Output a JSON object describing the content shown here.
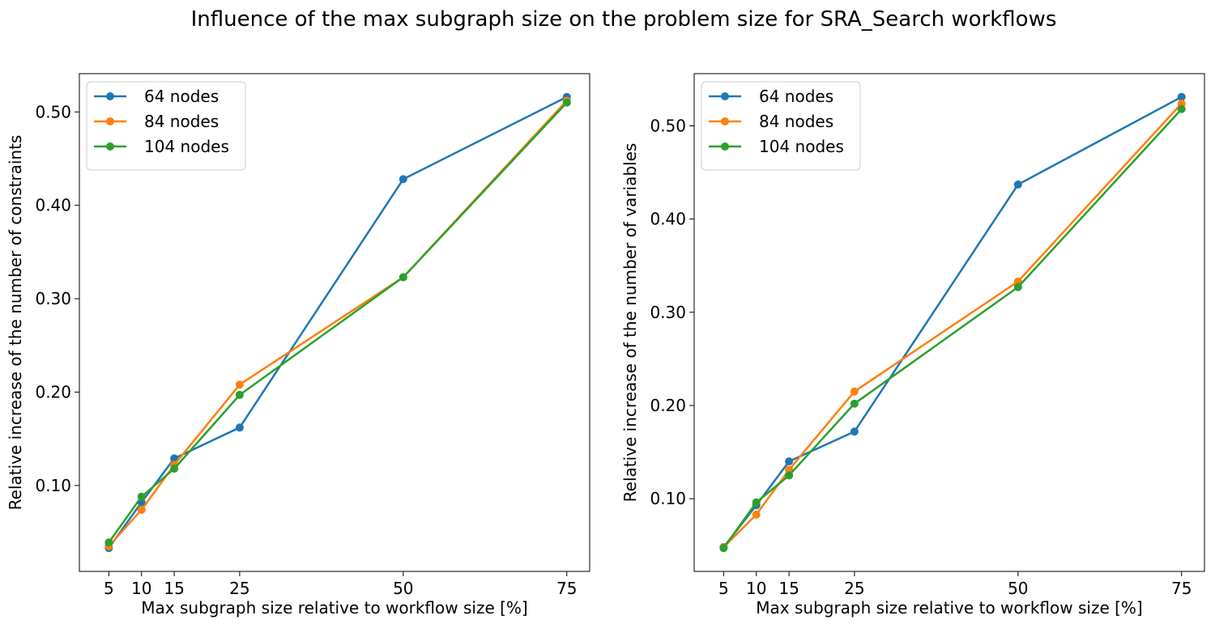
{
  "figure": {
    "title": "Influence of the max subgraph size on the problem size for SRA_Search workflows"
  },
  "chart_data": [
    {
      "type": "line",
      "xlabel": "Max subgraph size relative to workflow size [%]",
      "ylabel": "Relative increase of the number of constraints",
      "x": [
        5,
        10,
        15,
        25,
        50,
        75
      ],
      "xticks": [
        5,
        10,
        15,
        25,
        50,
        75
      ],
      "xtick_labels": [
        "5",
        "10",
        "15",
        "25",
        "50",
        "75"
      ],
      "yticks": [
        0.1,
        0.2,
        0.3,
        0.4,
        0.5
      ],
      "ytick_labels": [
        "0.10",
        "0.20",
        "0.30",
        "0.40",
        "0.50"
      ],
      "xlim": [
        0.5,
        78.5
      ],
      "ylim": [
        0.008,
        0.541
      ],
      "legend_position": "upper-left",
      "grid": false,
      "series": [
        {
          "name": "64 nodes",
          "color": "#1f77b4",
          "values": [
            0.033,
            0.082,
            0.129,
            0.162,
            0.428,
            0.516
          ]
        },
        {
          "name": "84 nodes",
          "color": "#ff7f0e",
          "values": [
            0.035,
            0.074,
            0.122,
            0.208,
            0.323,
            0.512
          ]
        },
        {
          "name": "104 nodes",
          "color": "#2ca02c",
          "values": [
            0.039,
            0.088,
            0.118,
            0.197,
            0.323,
            0.51
          ]
        }
      ]
    },
    {
      "type": "line",
      "xlabel": "Max subgraph size relative to workflow size [%]",
      "ylabel": "Relative increase of the number of variables",
      "x": [
        5,
        10,
        15,
        25,
        50,
        75
      ],
      "xticks": [
        5,
        10,
        15,
        25,
        50,
        75
      ],
      "xtick_labels": [
        "5",
        "10",
        "15",
        "25",
        "50",
        "75"
      ],
      "yticks": [
        0.1,
        0.2,
        0.3,
        0.4,
        0.5
      ],
      "ytick_labels": [
        "0.10",
        "0.20",
        "0.30",
        "0.40",
        "0.50"
      ],
      "xlim": [
        0.5,
        78.5
      ],
      "ylim": [
        0.022,
        0.556
      ],
      "legend_position": "upper-left",
      "grid": false,
      "series": [
        {
          "name": "64 nodes",
          "color": "#1f77b4",
          "values": [
            0.048,
            0.093,
            0.14,
            0.172,
            0.437,
            0.531
          ]
        },
        {
          "name": "84 nodes",
          "color": "#ff7f0e",
          "values": [
            0.048,
            0.083,
            0.131,
            0.215,
            0.333,
            0.524
          ]
        },
        {
          "name": "104 nodes",
          "color": "#2ca02c",
          "values": [
            0.047,
            0.096,
            0.125,
            0.202,
            0.327,
            0.518
          ]
        }
      ]
    }
  ]
}
